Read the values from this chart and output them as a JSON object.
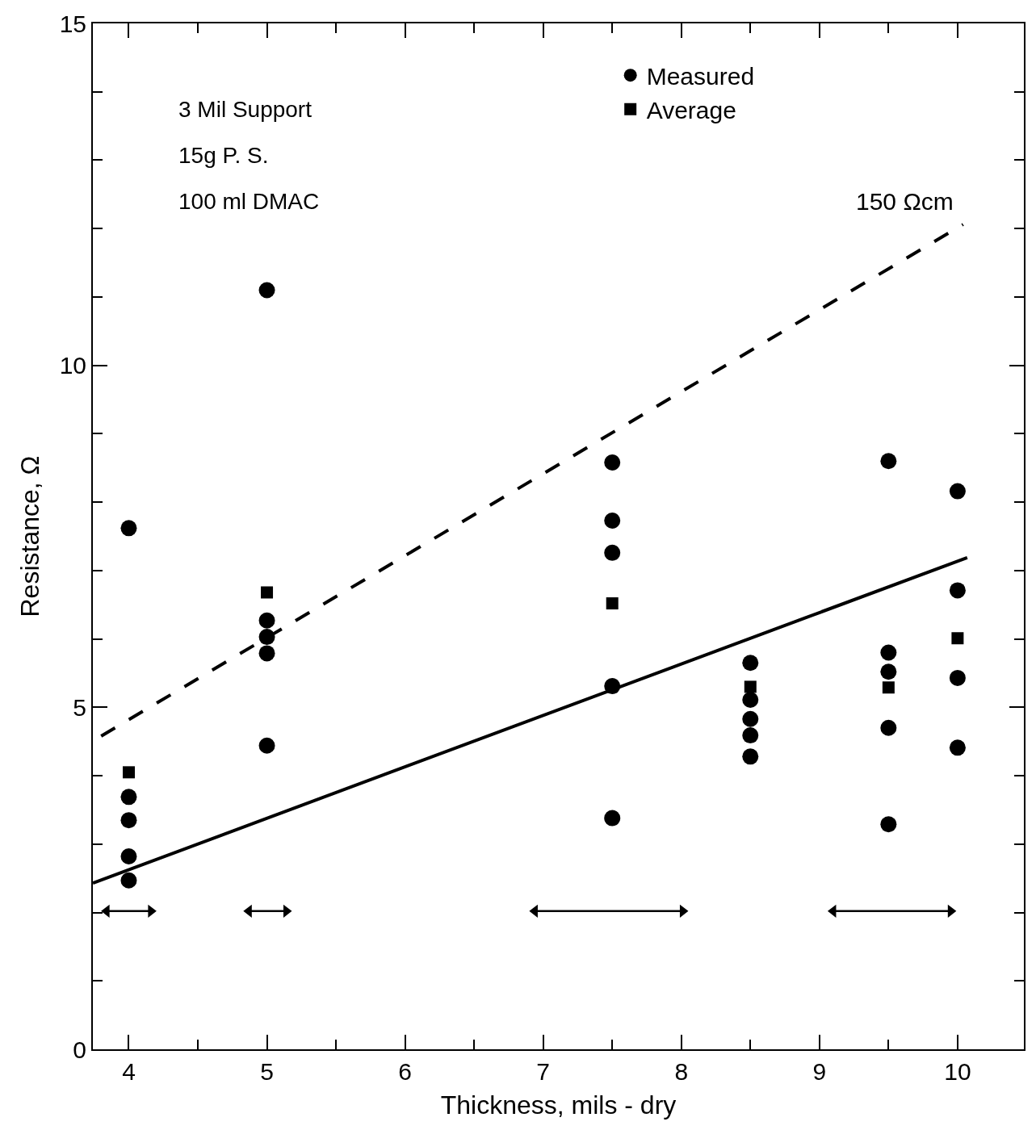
{
  "chart_data": {
    "type": "scatter",
    "xlabel": "Thickness, mils - dry",
    "ylabel": "Resistance, Ω",
    "xlim": [
      3.74,
      10.48
    ],
    "ylim": [
      0,
      15
    ],
    "xticks": [
      4,
      {
        "value": 4.5,
        "label": null
      },
      5,
      {
        "value": 5.5,
        "label": null
      },
      6,
      {
        "value": 6.5,
        "label": null
      },
      7,
      {
        "value": 7.5,
        "label": null
      },
      8,
      {
        "value": 8.5,
        "label": null
      },
      9,
      {
        "value": 9.5,
        "label": null
      },
      10
    ],
    "yticks": [
      0,
      {
        "value": 1,
        "label": null
      },
      {
        "value": 2,
        "label": null
      },
      {
        "value": 3,
        "label": null
      },
      {
        "value": 4,
        "label": null
      },
      5,
      {
        "value": 6,
        "label": null
      },
      {
        "value": 7,
        "label": null
      },
      {
        "value": 8,
        "label": null
      },
      {
        "value": 9,
        "label": null
      },
      10,
      {
        "value": 11,
        "label": null
      },
      {
        "value": 12,
        "label": null
      },
      {
        "value": 13,
        "label": null
      },
      {
        "value": 14,
        "label": null
      },
      15
    ],
    "grid": false,
    "legend": "top",
    "annotations": [
      "3 Mil Support",
      "15g P. S.",
      "100 ml DMAC"
    ],
    "series": [
      {
        "name": "Measured",
        "marker": "circle",
        "color": "#000000",
        "x": [
          4,
          4,
          4,
          4,
          4,
          5,
          5,
          5,
          5,
          5,
          7.5,
          7.5,
          7.5,
          7.5,
          7.5,
          8.5,
          8.5,
          8.5,
          8.5,
          8.5,
          9.5,
          9.5,
          9.5,
          9.5,
          9.5,
          10,
          10,
          10,
          10
        ],
        "values": [
          7.62,
          3.69,
          3.35,
          2.82,
          2.47,
          11.1,
          6.27,
          6.03,
          5.79,
          4.44,
          8.58,
          7.73,
          7.26,
          5.31,
          3.38,
          5.65,
          5.11,
          4.83,
          4.59,
          4.28,
          8.6,
          5.8,
          5.52,
          4.7,
          3.29,
          8.16,
          6.71,
          5.43,
          4.41
        ]
      },
      {
        "name": "Average",
        "marker": "square",
        "color": "#000000",
        "x": [
          4,
          5,
          7.5,
          8.5,
          9.5,
          10
        ],
        "values": [
          4.05,
          6.68,
          6.52,
          5.3,
          5.29,
          6.01
        ]
      },
      {
        "name": "150 Ωcm",
        "type": "line",
        "line_style": "dashed",
        "color": "#000000",
        "x": [
          3.8,
          10.04
        ],
        "values": [
          4.58,
          12.06
        ]
      },
      {
        "type": "line",
        "line_style": "solid",
        "color": "#000000",
        "x": [
          3.74,
          10.07
        ],
        "values": [
          2.43,
          7.19
        ]
      },
      {
        "type": "line",
        "line_style": "solid",
        "marker": "triangle",
        "color": "#000000",
        "x": [
          3.84,
          4.16
        ],
        "values": [
          2.02,
          2.02
        ]
      },
      {
        "type": "line",
        "line_style": "solid",
        "marker": "triangle",
        "color": "#000000",
        "x": [
          4.87,
          5.14
        ],
        "values": [
          2.02,
          2.02
        ]
      },
      {
        "type": "line",
        "line_style": "solid",
        "marker": "triangle",
        "color": "#000000",
        "x": [
          6.94,
          8.01
        ],
        "values": [
          2.02,
          2.02
        ]
      },
      {
        "type": "line",
        "line_style": "solid",
        "marker": "triangle",
        "color": "#000000",
        "x": [
          9.1,
          9.95
        ],
        "values": [
          2.02,
          2.02
        ]
      }
    ]
  }
}
